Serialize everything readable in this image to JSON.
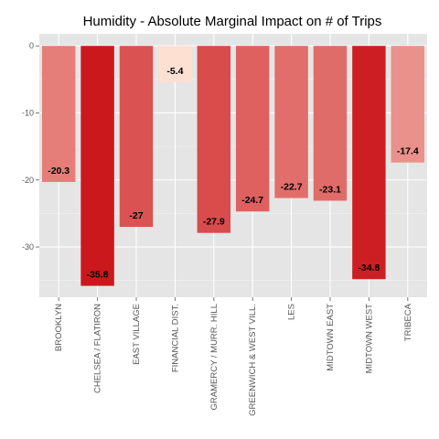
{
  "chart_data": {
    "type": "bar",
    "title": "Humidity - Absolute Marginal Impact on # of Trips",
    "xlabel": "",
    "ylabel": "",
    "categories": [
      "BROOKLYN",
      "CHELSEA / FLATIRON",
      "EAST VILLAGE",
      "FINANCIAL DIST.",
      "GRAMERCY / MURR. HILL",
      "GREENWICH & WEST VILL.",
      "LES",
      "MIDTOWN EAST",
      "MIDTOWN WEST",
      "TRIBECA"
    ],
    "values": [
      -20.3,
      -35.8,
      -27,
      -5.4,
      -27.9,
      -24.7,
      -22.7,
      -23.1,
      -34.8,
      -17.4
    ],
    "value_labels": [
      "-20.3",
      "-35.8",
      "-27",
      "-5.4",
      "-27.9",
      "-24.7",
      "-22.7",
      "-23.1",
      "-34.8",
      "-17.4"
    ],
    "yticks": [
      0,
      -10,
      -20,
      -30
    ],
    "ytick_labels": [
      "0",
      "-10",
      "-20",
      "-30"
    ],
    "ylim": [
      -37.5,
      1.8
    ],
    "grid": true,
    "legend": "none",
    "colors": {
      "panel_background": "#e5e5e5",
      "grid_major": "#ffffff",
      "grid_minor": "#f2f2f2",
      "fill_low": "#fee0d2",
      "fill_high": "#cb181d"
    }
  }
}
